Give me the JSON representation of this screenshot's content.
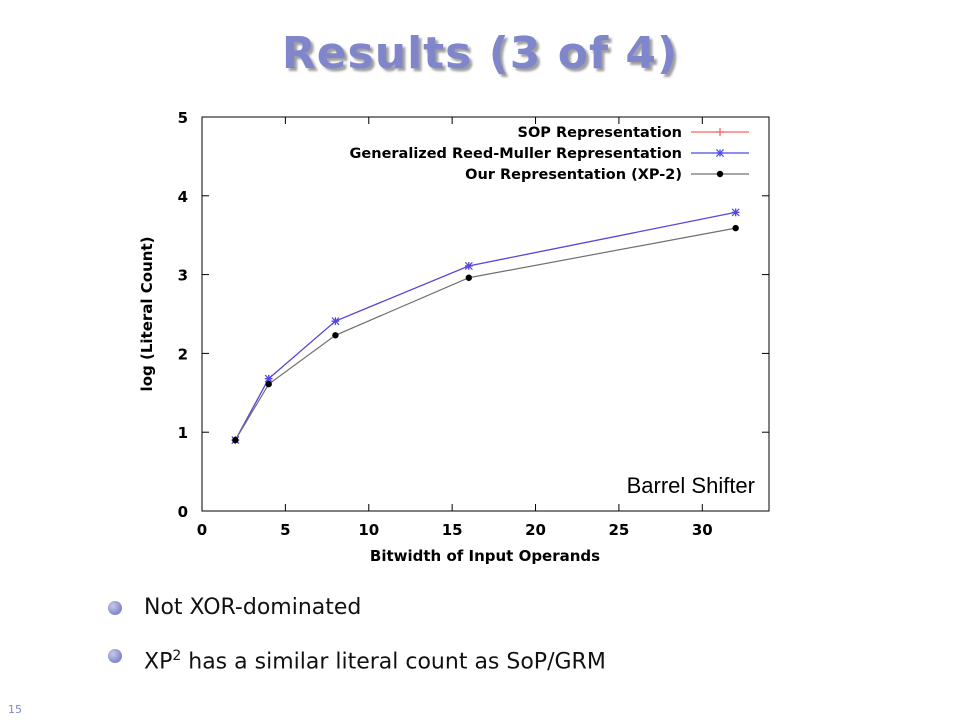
{
  "slide": {
    "title": "Results (3 of 4)",
    "bullets": [
      {
        "text": "Not XOR-dominated"
      },
      {
        "prefix": "XP",
        "sup": "2",
        "suffix": " has a similar literal count as SoP/GRM"
      }
    ],
    "page_number": "15",
    "accent_color": "#7f86cc"
  },
  "chart_data": {
    "type": "line",
    "title": "",
    "annotation": "Barrel Shifter",
    "xlabel": "Bitwidth of Input Operands",
    "ylabel": "log (Literal Count)",
    "xlim": [
      0,
      34
    ],
    "ylim": [
      0,
      5
    ],
    "xticks": [
      0,
      5,
      10,
      15,
      20,
      25,
      30
    ],
    "yticks": [
      0,
      1,
      2,
      3,
      4,
      5
    ],
    "grid": false,
    "legend_position": "top-right",
    "series": [
      {
        "name": "SOP Representation",
        "color": "#ff6060",
        "marker": "plus",
        "x": [
          2,
          4,
          8,
          16,
          32
        ],
        "y": [
          0.9,
          1.68,
          2.41,
          3.11,
          3.79
        ]
      },
      {
        "name": "Generalized Reed-Muller Representation",
        "color": "#4a4ae6",
        "marker": "star",
        "x": [
          2,
          4,
          8,
          16,
          32
        ],
        "y": [
          0.9,
          1.68,
          2.41,
          3.11,
          3.79
        ]
      },
      {
        "name": "Our Representation (XP-2)",
        "color": "#000000",
        "line_color": "#707070",
        "marker": "dot",
        "x": [
          2,
          4,
          8,
          16,
          32
        ],
        "y": [
          0.9,
          1.61,
          2.23,
          2.96,
          3.59
        ]
      }
    ]
  }
}
